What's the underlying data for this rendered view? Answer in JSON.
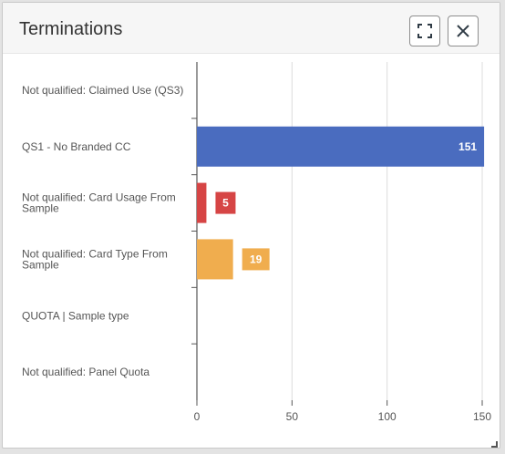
{
  "header": {
    "title": "Terminations",
    "expand_icon": "expand-icon",
    "close_icon": "close-icon"
  },
  "chart_data": {
    "type": "bar",
    "orientation": "horizontal",
    "title": "Terminations",
    "xlabel": "",
    "ylabel": "",
    "xlim": [
      0,
      150
    ],
    "ticks": [
      0,
      50,
      100,
      150
    ],
    "grid": true,
    "categories": [
      "Not qualified: Claimed Use (QS3)",
      "QS1 - No Branded CC",
      "Not qualified: Card Usage From Sample",
      "Not qualified: Card Type From Sample",
      "QUOTA | Sample type",
      "Not qualified: Panel Quota"
    ],
    "values": [
      0,
      151,
      5,
      19,
      0,
      0
    ],
    "colors": [
      "#4a6cbf",
      "#4a6cbf",
      "#d64545",
      "#f0ad4e",
      "#4a6cbf",
      "#4a6cbf"
    ]
  }
}
